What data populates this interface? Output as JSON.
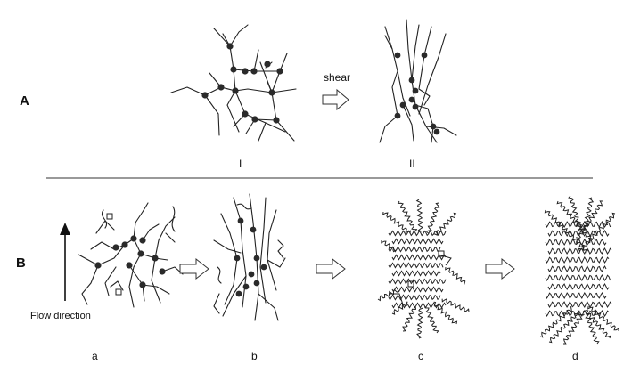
{
  "panel_a": {
    "letter": "A",
    "shear_label": "shear",
    "state_labels": [
      "I",
      "II"
    ]
  },
  "panel_b": {
    "letter": "B",
    "flow_label": "Flow direction",
    "stage_labels": [
      "a",
      "b",
      "c",
      "d"
    ]
  }
}
